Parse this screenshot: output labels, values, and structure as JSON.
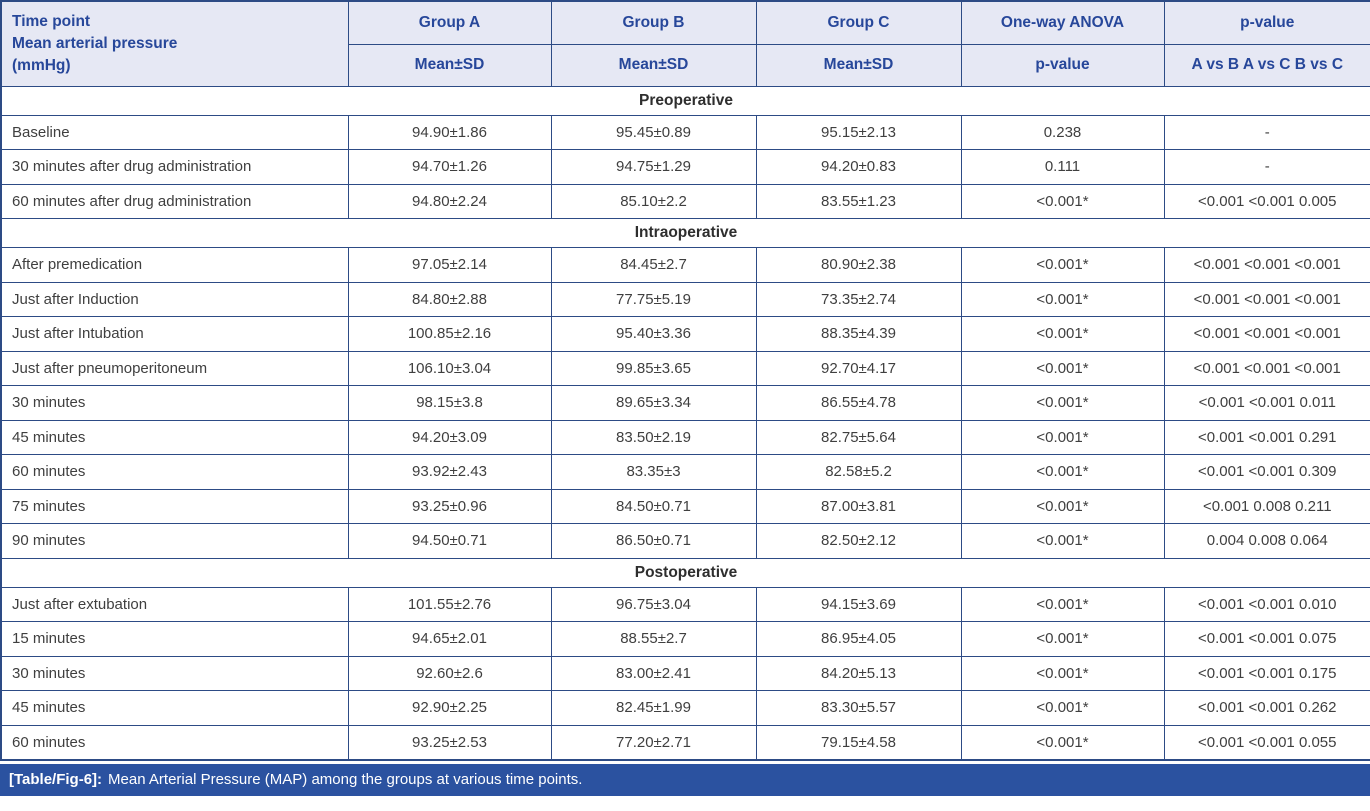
{
  "table": {
    "header": {
      "col1_lines": [
        "Time point",
        "Mean arterial pressure",
        "(mmHg)"
      ],
      "groups": [
        {
          "label": "Group A",
          "sub": "Mean±SD"
        },
        {
          "label": "Group B",
          "sub": "Mean±SD"
        },
        {
          "label": "Group C",
          "sub": "Mean±SD"
        },
        {
          "label": "One-way ANOVA",
          "sub": "p-value"
        },
        {
          "label": "p-value",
          "sub": "A vs B A vs C B vs C"
        }
      ]
    },
    "sections": [
      {
        "title": "Preoperative",
        "rows": [
          {
            "label": "Baseline",
            "a": "94.90±1.86",
            "b": "95.45±0.89",
            "c": "95.15±2.13",
            "anova": "0.238",
            "pairwise": "-"
          },
          {
            "label": "30 minutes after drug administration",
            "a": "94.70±1.26",
            "b": "94.75±1.29",
            "c": "94.20±0.83",
            "anova": "0.111",
            "pairwise": "-"
          },
          {
            "label": "60 minutes after drug administration",
            "a": "94.80±2.24",
            "b": "85.10±2.2",
            "c": "83.55±1.23",
            "anova": "<0.001*",
            "pairwise": "<0.001 <0.001 0.005"
          }
        ]
      },
      {
        "title": "Intraoperative",
        "rows": [
          {
            "label": "After premedication",
            "a": "97.05±2.14",
            "b": "84.45±2.7",
            "c": "80.90±2.38",
            "anova": "<0.001*",
            "pairwise": "<0.001 <0.001 <0.001"
          },
          {
            "label": "Just after Induction",
            "a": "84.80±2.88",
            "b": "77.75±5.19",
            "c": "73.35±2.74",
            "anova": "<0.001*",
            "pairwise": "<0.001 <0.001 <0.001"
          },
          {
            "label": "Just after Intubation",
            "a": "100.85±2.16",
            "b": "95.40±3.36",
            "c": "88.35±4.39",
            "anova": "<0.001*",
            "pairwise": "<0.001 <0.001 <0.001"
          },
          {
            "label": "Just after pneumoperitoneum",
            "a": "106.10±3.04",
            "b": "99.85±3.65",
            "c": "92.70±4.17",
            "anova": "<0.001*",
            "pairwise": "<0.001 <0.001 <0.001"
          },
          {
            "label": "30 minutes",
            "a": "98.15±3.8",
            "b": "89.65±3.34",
            "c": "86.55±4.78",
            "anova": "<0.001*",
            "pairwise": "<0.001 <0.001 0.011"
          },
          {
            "label": "45 minutes",
            "a": "94.20±3.09",
            "b": "83.50±2.19",
            "c": "82.75±5.64",
            "anova": "<0.001*",
            "pairwise": "<0.001 <0.001 0.291"
          },
          {
            "label": "60 minutes",
            "a": "93.92±2.43",
            "b": "83.35±3",
            "c": "82.58±5.2",
            "anova": "<0.001*",
            "pairwise": "<0.001 <0.001 0.309"
          },
          {
            "label": "75 minutes",
            "a": "93.25±0.96",
            "b": "84.50±0.71",
            "c": "87.00±3.81",
            "anova": "<0.001*",
            "pairwise": "<0.001 0.008 0.211"
          },
          {
            "label": "90 minutes",
            "a": "94.50±0.71",
            "b": "86.50±0.71",
            "c": "82.50±2.12",
            "anova": "<0.001*",
            "pairwise": "0.004 0.008 0.064"
          }
        ]
      },
      {
        "title": "Postoperative",
        "rows": [
          {
            "label": "Just after extubation",
            "a": "101.55±2.76",
            "b": "96.75±3.04",
            "c": "94.15±3.69",
            "anova": "<0.001*",
            "pairwise": "<0.001 <0.001 0.010"
          },
          {
            "label": "15 minutes",
            "a": "94.65±2.01",
            "b": "88.55±2.7",
            "c": "86.95±4.05",
            "anova": "<0.001*",
            "pairwise": "<0.001 <0.001 0.075"
          },
          {
            "label": "30 minutes",
            "a": "92.60±2.6",
            "b": "83.00±2.41",
            "c": "84.20±5.13",
            "anova": "<0.001*",
            "pairwise": "<0.001 <0.001 0.175"
          },
          {
            "label": "45 minutes",
            "a": "92.90±2.25",
            "b": "82.45±1.99",
            "c": "83.30±5.57",
            "anova": "<0.001*",
            "pairwise": "<0.001 <0.001 0.262"
          },
          {
            "label": "60 minutes",
            "a": "93.25±2.53",
            "b": "77.20±2.71",
            "c": "79.15±4.58",
            "anova": "<0.001*",
            "pairwise": "<0.001 <0.001 0.055"
          }
        ]
      }
    ],
    "caption": {
      "tag": "[Table/Fig-6]:",
      "text": "Mean Arterial Pressure (MAP) among the groups at various time points."
    },
    "colors": {
      "border": "#2d4b85",
      "header_background": "#e6e8f4",
      "header_text": "#27479a",
      "body_text": "#3f3f3f",
      "caption_background": "#2b52a0",
      "caption_text": "#ffffff"
    }
  }
}
